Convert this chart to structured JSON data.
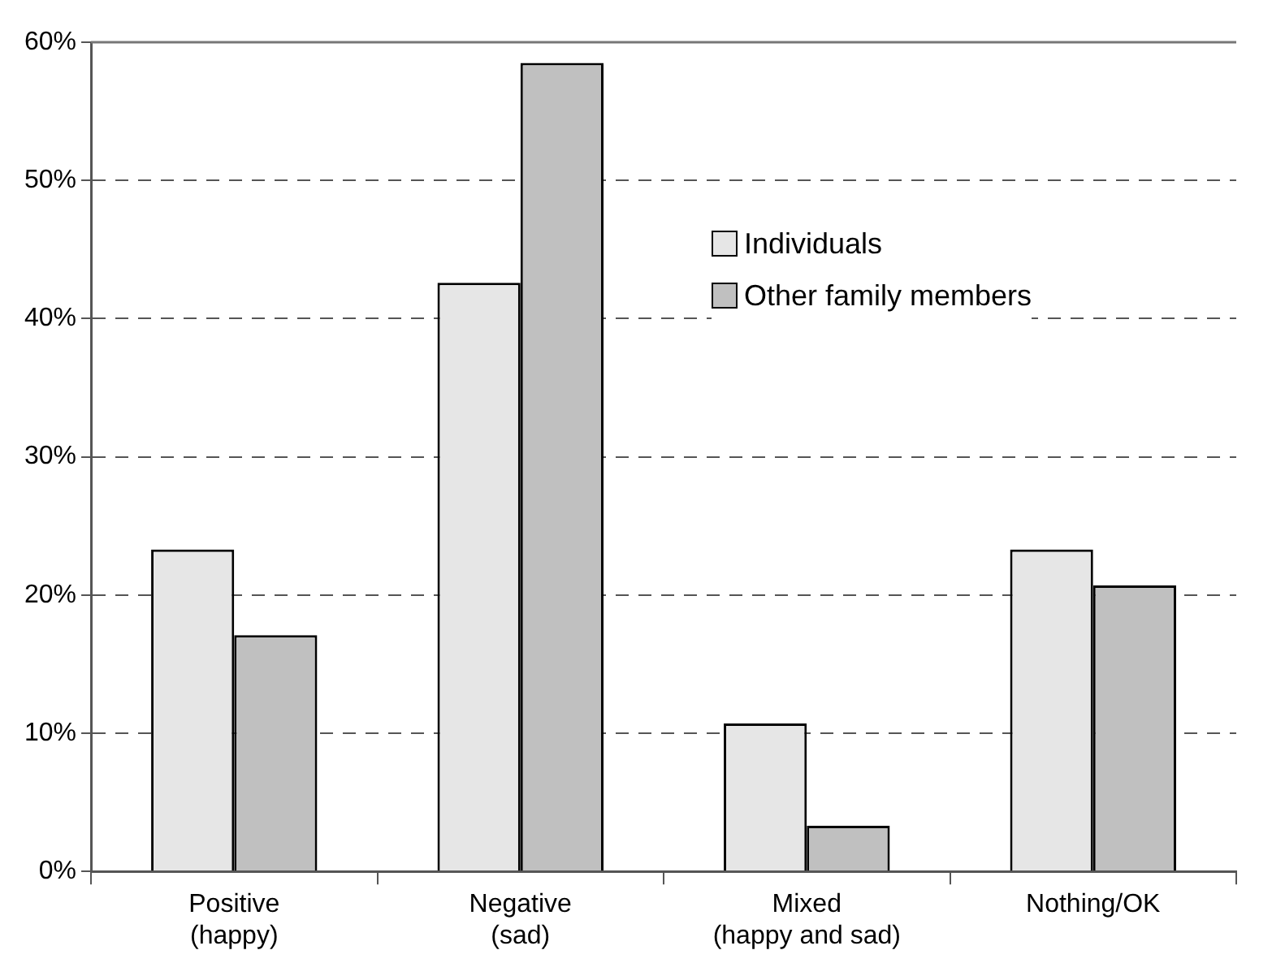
{
  "chart_data": {
    "type": "bar",
    "categories": [
      "Positive\n(happy)",
      "Negative\n(sad)",
      "Mixed\n(happy and sad)",
      "Nothing/OK"
    ],
    "series": [
      {
        "name": "Individuals",
        "color": "#e6e6e6",
        "values": [
          23.3,
          42.6,
          10.7,
          23.3
        ]
      },
      {
        "name": "Other family members",
        "color": "#c0c0c0",
        "values": [
          17.1,
          58.5,
          3.3,
          20.7
        ]
      }
    ],
    "ylim": [
      0,
      60
    ],
    "yticks": [
      {
        "value": 0,
        "label": "0%"
      },
      {
        "value": 10,
        "label": "10%"
      },
      {
        "value": 20,
        "label": "20%"
      },
      {
        "value": 30,
        "label": "30%"
      },
      {
        "value": 40,
        "label": "40%"
      },
      {
        "value": 50,
        "label": "50%"
      },
      {
        "value": 60,
        "label": "60%"
      }
    ],
    "grid": "y",
    "legend": "top right"
  }
}
